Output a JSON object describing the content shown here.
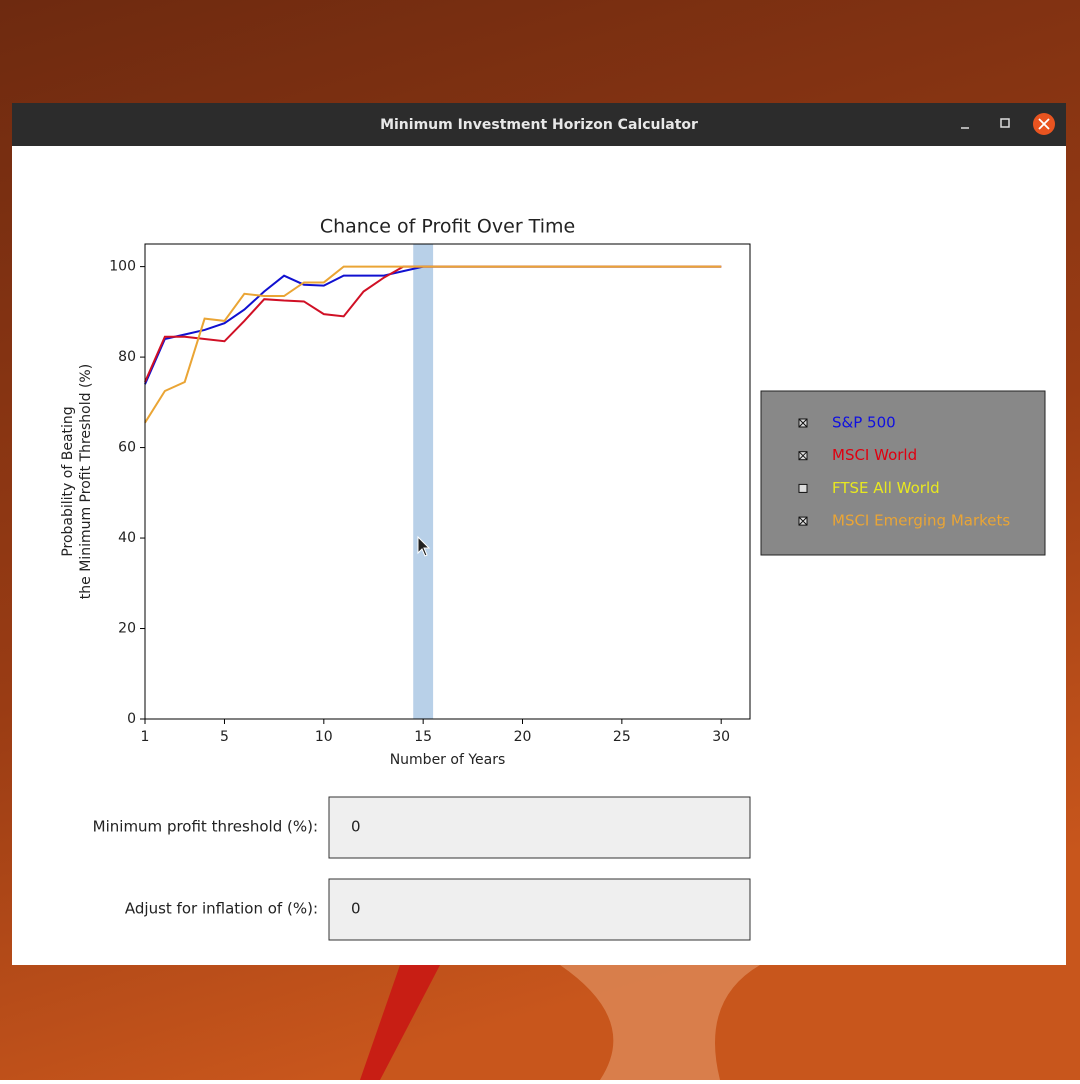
{
  "window": {
    "title": "Minimum Investment Horizon Calculator"
  },
  "chart_data": {
    "type": "line",
    "title": "Chance of Profit Over Time",
    "xlabel": "Number of Years",
    "ylabel": [
      "Probability of Beating",
      "the Minimum Profit Threshold (%)"
    ],
    "x": [
      1,
      2,
      3,
      4,
      5,
      6,
      7,
      8,
      9,
      10,
      11,
      12,
      13,
      14,
      15,
      16,
      17,
      18,
      19,
      20,
      21,
      22,
      23,
      24,
      25,
      26,
      27,
      28,
      29,
      30
    ],
    "series": [
      {
        "name": "S&P 500",
        "color": "#1010d0",
        "values": [
          74,
          84,
          85,
          86,
          87.5,
          90.5,
          94.5,
          98,
          96,
          95.8,
          98,
          98,
          98,
          99,
          100,
          100,
          100,
          100,
          100,
          100,
          100,
          100,
          100,
          100,
          100,
          100,
          100,
          100,
          100,
          100
        ]
      },
      {
        "name": "MSCI World",
        "color": "#d01025",
        "values": [
          74.5,
          84.5,
          84.5,
          84,
          83.5,
          88,
          92.8,
          92.5,
          92.3,
          89.5,
          89,
          94.5,
          97.5,
          100,
          100,
          100,
          100,
          100,
          100,
          100,
          100,
          100,
          100,
          100,
          100,
          100,
          100,
          100,
          100,
          100
        ]
      },
      {
        "name": "MSCI Emerging Markets",
        "color": "#eaa535",
        "values": [
          65.5,
          72.5,
          74.5,
          88.5,
          88,
          94,
          93.5,
          93.5,
          96.5,
          96.5,
          100,
          100,
          100,
          100,
          100,
          100,
          100,
          100,
          100,
          100,
          100,
          100,
          100,
          100,
          100,
          100,
          100,
          100,
          100,
          100
        ]
      }
    ],
    "highlight": [
      14.5,
      15.5
    ],
    "highlight_color": "#b8d0e8",
    "xlim": [
      1,
      31.45
    ],
    "ylim": [
      0,
      105
    ],
    "xticks": [
      1,
      5,
      10,
      15,
      20,
      25,
      30
    ],
    "yticks": [
      0,
      20,
      40,
      60,
      80,
      100
    ],
    "legend": [
      {
        "name": "S&P 500",
        "color": "#1010e0",
        "checked": true
      },
      {
        "name": "MSCI World",
        "color": "#e00010",
        "checked": true
      },
      {
        "name": "FTSE All World",
        "color": "#e8e820",
        "checked": false
      },
      {
        "name": "MSCI Emerging Markets",
        "color": "#eaa535",
        "checked": true
      }
    ]
  },
  "form": {
    "fields": [
      {
        "label": "Minimum profit threshold (%):",
        "value": 0
      },
      {
        "label": "Adjust for inflation of (%):",
        "value": 0
      }
    ]
  }
}
